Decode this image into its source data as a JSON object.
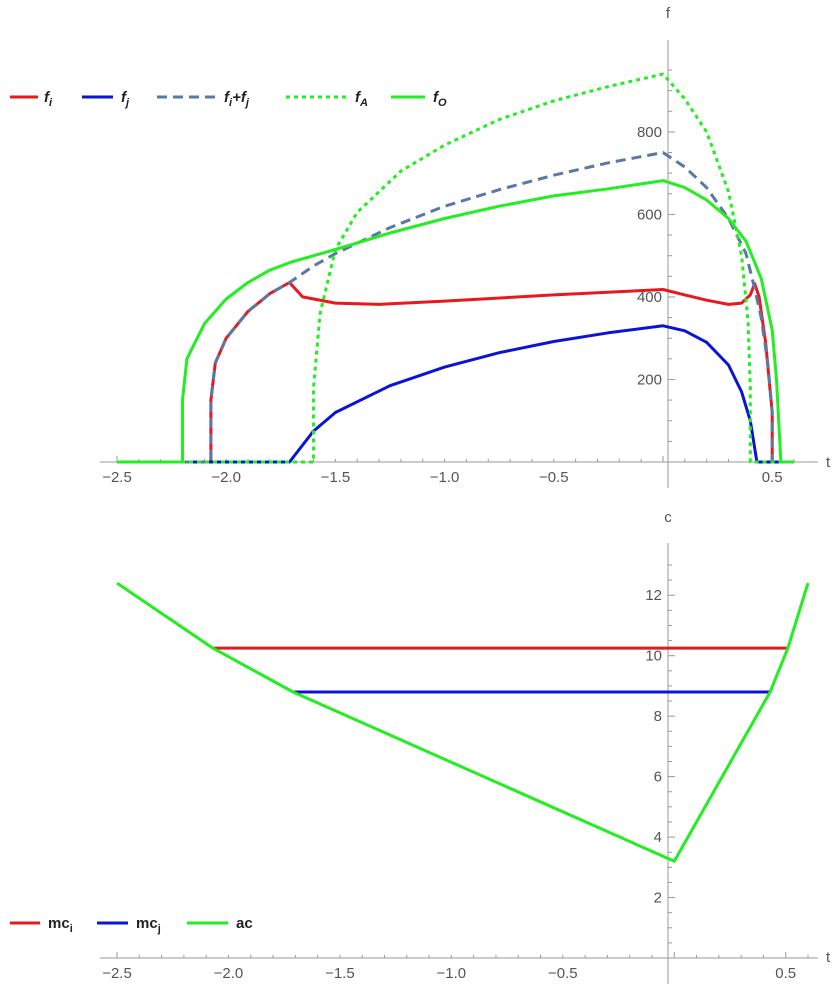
{
  "chart_data": [
    {
      "type": "line",
      "ylabel": "f",
      "xlabel": "t",
      "xlim": [
        -2.5,
        0.6
      ],
      "ylim": [
        0,
        950
      ],
      "x_ticks": [
        -2.5,
        -2.0,
        -1.5,
        -1.0,
        -0.5,
        0.5
      ],
      "x_tick_labels": [
        "−2.5",
        "−2.0",
        "−1.5",
        "−1.0",
        "−0.5",
        "0.5"
      ],
      "y_ticks": [
        200,
        400,
        600,
        800
      ],
      "y_tick_labels": [
        "200",
        "400",
        "600",
        "800"
      ],
      "legend_position": "top-left",
      "series": [
        {
          "name": "fi",
          "label_main": "f",
          "label_sub": "i",
          "color": "#e8191c",
          "dash": "solid",
          "x": [
            -2.5,
            -2.07,
            -2.07,
            -2.05,
            -2.0,
            -1.9,
            -1.8,
            -1.71,
            -1.65,
            -1.5,
            -1.3,
            -1.0,
            -0.5,
            0,
            0.1,
            0.2,
            0.3,
            0.36,
            0.4,
            0.42,
            0.44,
            0.47,
            0.5,
            0.5,
            0.6
          ],
          "y": [
            0,
            0,
            150,
            240,
            300,
            365,
            408,
            435,
            400,
            385,
            382,
            390,
            405,
            418,
            405,
            392,
            382,
            385,
            405,
            432,
            400,
            290,
            120,
            0,
            0
          ]
        },
        {
          "name": "fj",
          "label_main": "f",
          "label_sub": "j",
          "color": "#0b14d6",
          "dash": "solid",
          "x": [
            -2.5,
            -1.71,
            -1.6,
            -1.5,
            -1.25,
            -1.0,
            -0.75,
            -0.5,
            -0.25,
            0,
            0.1,
            0.2,
            0.3,
            0.36,
            0.4,
            0.43,
            0.6
          ],
          "y": [
            0,
            0,
            75,
            120,
            185,
            230,
            265,
            292,
            313,
            330,
            318,
            290,
            235,
            170,
            100,
            0,
            0
          ]
        },
        {
          "name": "fi+fj",
          "label_main": "f",
          "label_sub": "i",
          "label_mid": "+f",
          "label_sub2": "j",
          "color": "#5a78a6",
          "dash": "dashed",
          "x": [
            -2.5,
            -2.07,
            -2.07,
            -2.05,
            -2.0,
            -1.9,
            -1.8,
            -1.71,
            -1.6,
            -1.5,
            -1.25,
            -1.0,
            -0.75,
            -0.5,
            -0.25,
            0,
            0.1,
            0.2,
            0.3,
            0.38,
            0.42,
            0.45,
            0.48,
            0.5,
            0.5,
            0.6
          ],
          "y": [
            0,
            0,
            150,
            240,
            300,
            365,
            408,
            435,
            475,
            505,
            568,
            620,
            660,
            695,
            725,
            750,
            715,
            665,
            590,
            505,
            420,
            350,
            240,
            120,
            0,
            0
          ]
        },
        {
          "name": "fA",
          "label_main": "f",
          "label_sub": "A",
          "color": "#22ee22",
          "dash": "dotted",
          "x": [
            -2.5,
            -1.6,
            -1.6,
            -1.57,
            -1.5,
            -1.4,
            -1.2,
            -1.0,
            -0.75,
            -0.5,
            -0.25,
            0,
            0.1,
            0.2,
            0.3,
            0.36,
            0.39,
            0.4,
            0.4,
            0.6
          ],
          "y": [
            0,
            0,
            180,
            360,
            515,
            605,
            705,
            768,
            830,
            875,
            910,
            940,
            880,
            800,
            655,
            500,
            340,
            180,
            0,
            0
          ]
        },
        {
          "name": "fO",
          "label_main": "f",
          "label_sub": "O",
          "color": "#22ee22",
          "dash": "solid",
          "x": [
            -2.5,
            -2.2,
            -2.2,
            -2.18,
            -2.1,
            -2.0,
            -1.9,
            -1.8,
            -1.7,
            -1.5,
            -1.25,
            -1.0,
            -0.75,
            -0.5,
            -0.25,
            0,
            0.1,
            0.2,
            0.3,
            0.38,
            0.45,
            0.5,
            0.52,
            0.54,
            0.54,
            0.6
          ],
          "y": [
            0,
            0,
            150,
            250,
            335,
            395,
            435,
            465,
            485,
            515,
            555,
            590,
            620,
            645,
            662,
            682,
            665,
            635,
            590,
            535,
            445,
            320,
            200,
            0,
            0,
            0
          ]
        }
      ]
    },
    {
      "type": "line",
      "ylabel": "c",
      "xlabel": "t",
      "xlim": [
        -2.5,
        0.6
      ],
      "ylim": [
        0,
        13
      ],
      "x_ticks": [
        -2.5,
        -2.0,
        -1.5,
        -1.0,
        -0.5,
        0.5
      ],
      "x_tick_labels": [
        "−2.5",
        "−2.0",
        "−1.5",
        "−1.0",
        "−0.5",
        "0.5"
      ],
      "y_ticks": [
        2,
        4,
        6,
        8,
        10,
        12
      ],
      "y_tick_labels": [
        "2",
        "4",
        "6",
        "8",
        "10",
        "12"
      ],
      "legend_position": "bottom-left",
      "series": [
        {
          "name": "mci",
          "label_main": "mc",
          "label_sub": "i",
          "color": "#e8191c",
          "dash": "solid",
          "x": [
            -2.07,
            0.51
          ],
          "y": [
            10.25,
            10.25
          ]
        },
        {
          "name": "mcj",
          "label_main": "mc",
          "label_sub": "j",
          "color": "#0b14d6",
          "dash": "solid",
          "x": [
            -1.71,
            0.43
          ],
          "y": [
            8.8,
            8.8
          ]
        },
        {
          "name": "ac",
          "label_main": "ac",
          "color": "#22ee22",
          "dash": "solid",
          "x": [
            -2.5,
            -2.07,
            -1.71,
            0,
            0.43,
            0.51,
            0.6
          ],
          "y": [
            12.4,
            10.25,
            8.8,
            3.2,
            8.8,
            10.25,
            12.4
          ]
        }
      ]
    }
  ]
}
